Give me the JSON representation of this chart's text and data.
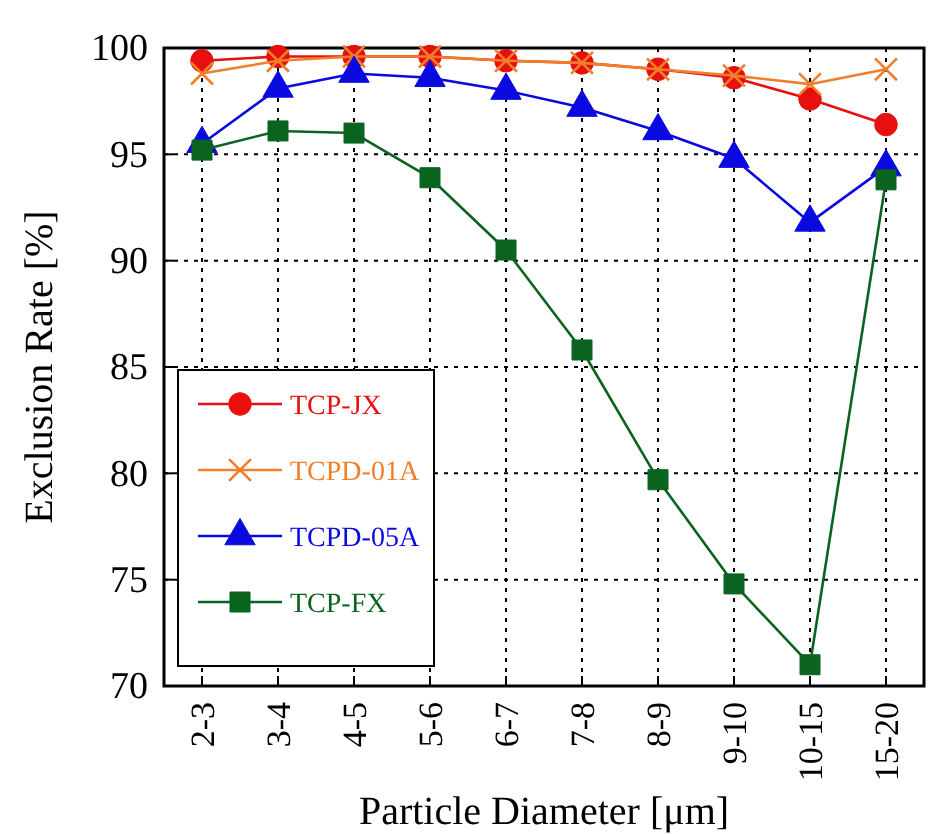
{
  "chart_data": {
    "type": "line",
    "xlabel": "Particle Diameter [μm]",
    "ylabel": "Exclusion Rate [%]",
    "categories": [
      "2-3",
      "3-4",
      "4-5",
      "5-6",
      "6-7",
      "7-8",
      "8-9",
      "9-10",
      "10-15",
      "15-20"
    ],
    "ylim": [
      70,
      100
    ],
    "yticks": [
      70,
      75,
      80,
      85,
      90,
      95,
      100
    ],
    "grid": true,
    "legend": "bottom left",
    "series": [
      {
        "name": "TCP-JX",
        "color": "#e8100f",
        "marker": "circle",
        "values": [
          99.4,
          99.6,
          99.6,
          99.6,
          99.4,
          99.3,
          99.0,
          98.6,
          97.6,
          96.4
        ]
      },
      {
        "name": "TCPD-01A",
        "color": "#f07f2a",
        "marker": "cross",
        "values": [
          98.8,
          99.4,
          99.6,
          99.6,
          99.4,
          99.3,
          99.0,
          98.7,
          98.3,
          99.0
        ]
      },
      {
        "name": "TCPD-05A",
        "color": "#0a0ae0",
        "marker": "triangle",
        "values": [
          95.5,
          98.1,
          98.8,
          98.6,
          98.0,
          97.2,
          96.1,
          94.8,
          91.8,
          94.4
        ]
      },
      {
        "name": "TCP-FX",
        "color": "#0b6320",
        "marker": "square",
        "values": [
          95.2,
          96.1,
          96.0,
          93.9,
          90.5,
          85.8,
          79.7,
          74.8,
          71.0,
          93.8
        ]
      }
    ]
  }
}
